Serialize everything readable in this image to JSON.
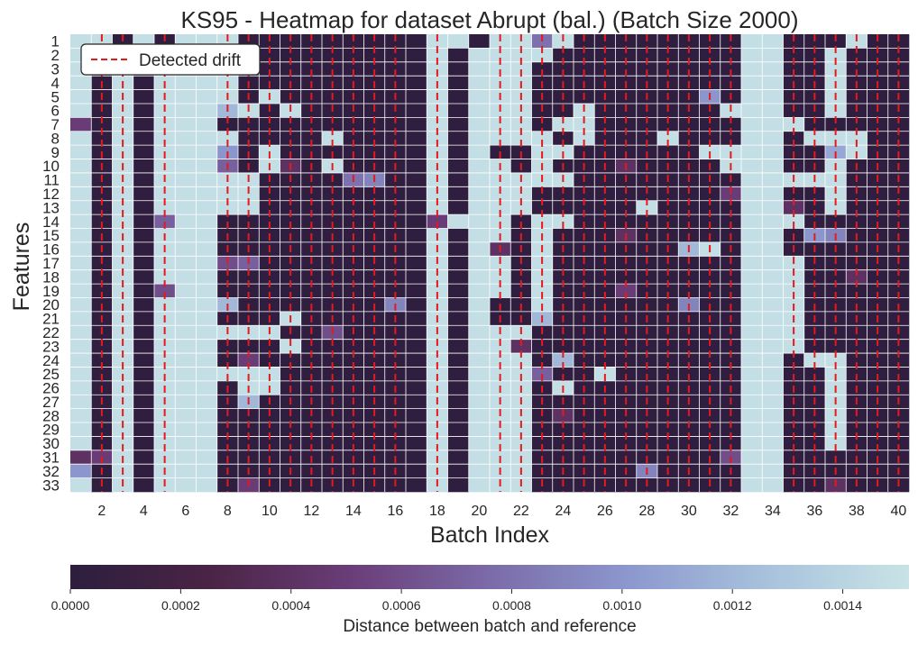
{
  "chart_data": {
    "type": "heatmap",
    "title": "KS95 - Heatmap for dataset Abrupt (bal.) (Batch Size 2000)",
    "xlabel": "Batch Index",
    "ylabel": "Features",
    "x_values": [
      1,
      2,
      3,
      4,
      5,
      6,
      7,
      8,
      9,
      10,
      11,
      12,
      13,
      14,
      15,
      16,
      17,
      18,
      19,
      20,
      21,
      22,
      23,
      24,
      25,
      26,
      27,
      28,
      29,
      30,
      31,
      32,
      33,
      34,
      35,
      36,
      37,
      38,
      39,
      40
    ],
    "x_tick_labels": [
      "2",
      "4",
      "6",
      "8",
      "10",
      "12",
      "14",
      "16",
      "18",
      "20",
      "22",
      "24",
      "26",
      "28",
      "30",
      "32",
      "34",
      "36",
      "38",
      "40"
    ],
    "y_tick_labels": [
      "1",
      "2",
      "3",
      "4",
      "5",
      "6",
      "7",
      "8",
      "9",
      "10",
      "11",
      "12",
      "13",
      "14",
      "15",
      "16",
      "17",
      "18",
      "19",
      "20",
      "21",
      "22",
      "23",
      "24",
      "25",
      "26",
      "27",
      "28",
      "29",
      "30",
      "31",
      "32",
      "33"
    ],
    "legend": {
      "entries": [
        "Detected drift"
      ],
      "placement": "upper-left"
    },
    "drift_line_color": "#e41a1c",
    "detected_drift_batches": [
      2,
      3,
      5,
      8,
      9,
      10,
      11,
      12,
      13,
      14,
      15,
      16,
      18,
      21,
      22,
      23,
      24,
      25,
      26,
      27,
      28,
      29,
      30,
      31,
      32,
      35,
      36,
      37,
      38,
      39,
      40
    ],
    "colorbar": {
      "label": "Distance between batch and reference",
      "min": 0.0,
      "max": 0.00152,
      "tick_values": [
        0.0,
        0.0002,
        0.0004,
        0.0006,
        0.0008,
        0.001,
        0.0012,
        0.0014
      ],
      "tick_labels": [
        "0.0000",
        "0.0002",
        "0.0004",
        "0.0006",
        "0.0008",
        "0.0010",
        "0.0012",
        "0.0014"
      ],
      "colors": [
        "#2d1e3e",
        "#4a2445",
        "#6a3d78",
        "#7b6ba8",
        "#8c98ce",
        "#a8c3dc",
        "#c8e3e6"
      ]
    },
    "row_values": [
      "LLDLDLLLDDDDDDDDDLLDLLLLDDDDDDDDLLDDDLDD",
      "LDLDLLLLDDDDDDDDDLDLLLLDDDDDDDDDLLDDLDDD",
      "LDLDLLLLDDDDDDDDDLDLLLDDDDDDDDDDLLDDLDDD",
      "LDLDLLLLDDDDDDDDDLDLLLDDDDDDDDDDLLDDLDDD",
      "LDLDLLLLDLDDDDDDDLDLLLDDDDDDDDDDLLDDLDDD",
      "LDLDLLLLLDLDDDDDDLDLLLDDLDDDDDDLLLDDLDDD",
      "DDLDLLLDDDDDDDDDDLDLLLDLLDDDDDDDLLLDDDDD",
      "LDLDLLLLDDDDLDDDDLDLLLLDLDDDLDDDLLDLLLDD",
      "LDLDLLLDDLDDDDDDDLDLDDLLDDDDDDLLLLDDLLDD",
      "LDLDLLLDDLDDLDDDDLDLLDLDDDDDDDDLLLDDLDDD",
      "LDLDLLLLLDDDDDDDDLDLLLLLDDDDDDDDLLLLLDDD",
      "LDLDLLLLLDDDDDDDDLDLLLDDDDDDDDDDLLDDLDDD",
      "LDLDLLLLLDDDDDDDDLDLLLDDDDDLDDDDLLDDLDDD",
      "LDLDLLLDDDDDDDDDDDLLLDLLDDDDDDDDLLLDDDDD",
      "LDLDLLLDDDDDDDDDDLDLLDLDDDDDDDDDLLDDDDDD",
      "LDLDLLLDDDDDDDDDDLDLDDLDDDDDDDLDLLDDDDDD",
      "LDLDLLLDDDDDDDDDDLDLLDLDDDDDDDDDLLLDDDDD",
      "LDLDLLLDDDDDDDDDDLDLLDLDDDDDDDDDLLLDDDDD",
      "LDLDLLLDDDDDDDDDDLDLLDLDDDDDDDDDLLLDDDDD",
      "LDLDLLLLDDDDDDDDDLDLDDLDDDDDDDDDLLLDDDDD",
      "LDLDLLLDDDLDDDDDDLDLDDLDDDDDDDDDLLLDDDDD",
      "LDLDLLLLLLDDDDDDDLDLLLDDDDDDDDDDLLLDDDDD",
      "LDLDLLLDDDLDDDDDDLDLLLDDDDDDDDDDLLLDDDDD",
      "LDLDLLLDDDDDDDDDDLDLLLDDDDDDDDDDLLDLLDDD",
      "LDLDLLLLLLDDDDDDDLDLLLDDDLDDDDDDLLDDLDDD",
      "LDLDLLLDLLDDDDDDDLDLLLDLDDDDDDDDLLDDLDDD",
      "LDLDLLLDDDDDDDDDDLDLLLDDDDDDDDDDLLDDLDDD",
      "LDLDLLLDDDDDDDDDDLDLLLDDDDDDDDDDLLDDLDDD",
      "LDLDLLLDDDDDDDDDDLDLLLDDDDDDDDDDLLDDLDDD",
      "LDLDLLLDDDDDDDDDDLDLLLDDDDDDDDDDLLDDLDDD",
      "DDLDLLLDDDDDDDDDDLDLLLDDDDDDDDDDLLDDDDDD",
      "LDLDLLLDDDDDDDDDDLDLLLDDDDDDDDDDLLDDDDDD",
      "LDLDLLLDDDDDDDDDDLDLLLDDDDDDDDDDLLDDDDDD"
    ],
    "highlight_cells": [
      {
        "feature": 1,
        "batch": 23,
        "value": 0.0008
      },
      {
        "feature": 5,
        "batch": 31,
        "value": 0.001
      },
      {
        "feature": 6,
        "batch": 8,
        "value": 0.0012
      },
      {
        "feature": 7,
        "batch": 1,
        "value": 0.0005
      },
      {
        "feature": 9,
        "batch": 8,
        "value": 0.001
      },
      {
        "feature": 9,
        "batch": 37,
        "value": 0.0011
      },
      {
        "feature": 10,
        "batch": 8,
        "value": 0.0007
      },
      {
        "feature": 10,
        "batch": 11,
        "value": 0.0004
      },
      {
        "feature": 10,
        "batch": 27,
        "value": 0.0004
      },
      {
        "feature": 11,
        "batch": 14,
        "value": 0.0008
      },
      {
        "feature": 11,
        "batch": 15,
        "value": 0.0009
      },
      {
        "feature": 12,
        "batch": 32,
        "value": 0.0005
      },
      {
        "feature": 13,
        "batch": 35,
        "value": 0.0004
      },
      {
        "feature": 14,
        "batch": 5,
        "value": 0.0007
      },
      {
        "feature": 14,
        "batch": 18,
        "value": 0.0005
      },
      {
        "feature": 15,
        "batch": 36,
        "value": 0.001
      },
      {
        "feature": 15,
        "batch": 37,
        "value": 0.0009
      },
      {
        "feature": 15,
        "batch": 27,
        "value": 0.0004
      },
      {
        "feature": 16,
        "batch": 21,
        "value": 0.0004
      },
      {
        "feature": 16,
        "batch": 30,
        "value": 0.0012
      },
      {
        "feature": 17,
        "batch": 8,
        "value": 0.0006
      },
      {
        "feature": 17,
        "batch": 9,
        "value": 0.0007
      },
      {
        "feature": 18,
        "batch": 38,
        "value": 0.0004
      },
      {
        "feature": 19,
        "batch": 5,
        "value": 0.0006
      },
      {
        "feature": 19,
        "batch": 27,
        "value": 0.0005
      },
      {
        "feature": 20,
        "batch": 8,
        "value": 0.0012
      },
      {
        "feature": 20,
        "batch": 16,
        "value": 0.0009
      },
      {
        "feature": 20,
        "batch": 30,
        "value": 0.0009
      },
      {
        "feature": 21,
        "batch": 23,
        "value": 0.0012
      },
      {
        "feature": 22,
        "batch": 13,
        "value": 0.0006
      },
      {
        "feature": 23,
        "batch": 22,
        "value": 0.0004
      },
      {
        "feature": 24,
        "batch": 9,
        "value": 0.0005
      },
      {
        "feature": 24,
        "batch": 24,
        "value": 0.0012
      },
      {
        "feature": 25,
        "batch": 23,
        "value": 0.0007
      },
      {
        "feature": 27,
        "batch": 9,
        "value": 0.0012
      },
      {
        "feature": 28,
        "batch": 24,
        "value": 0.0004
      },
      {
        "feature": 31,
        "batch": 1,
        "value": 0.0004
      },
      {
        "feature": 31,
        "batch": 2,
        "value": 0.0005
      },
      {
        "feature": 31,
        "batch": 32,
        "value": 0.0006
      },
      {
        "feature": 32,
        "batch": 1,
        "value": 0.001
      },
      {
        "feature": 32,
        "batch": 28,
        "value": 0.0009
      },
      {
        "feature": 33,
        "batch": 9,
        "value": 0.0005
      },
      {
        "feature": 33,
        "batch": 37,
        "value": 0.0004
      }
    ]
  }
}
